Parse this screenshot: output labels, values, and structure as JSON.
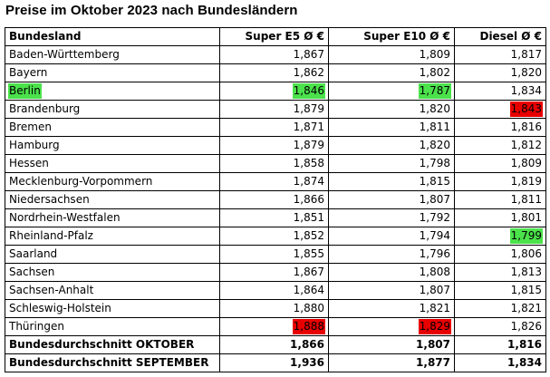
{
  "title": "Preise im Oktober 2023 nach Bundesländern",
  "colors": {
    "green": "#4be24b",
    "red": "#e80000"
  },
  "headers": [
    "Bundesland",
    "Super E5 Ø €",
    "Super E10 Ø €",
    "Diesel Ø €"
  ],
  "rows": [
    {
      "state": "Baden-Württemberg",
      "e5": "1,867",
      "e10": "1,809",
      "diesel": "1,817"
    },
    {
      "state": "Bayern",
      "e5": "1,862",
      "e10": "1,802",
      "diesel": "1,820"
    },
    {
      "state": "Berlin",
      "e5": "1,846",
      "e10": "1,787",
      "diesel": "1,834",
      "hl": {
        "state": "green",
        "e5": "green",
        "e10": "green"
      }
    },
    {
      "state": "Brandenburg",
      "e5": "1,879",
      "e10": "1,820",
      "diesel": "1,843",
      "hl": {
        "diesel": "red"
      }
    },
    {
      "state": "Bremen",
      "e5": "1,871",
      "e10": "1,811",
      "diesel": "1,816"
    },
    {
      "state": "Hamburg",
      "e5": "1,879",
      "e10": "1,820",
      "diesel": "1,812"
    },
    {
      "state": "Hessen",
      "e5": "1,858",
      "e10": "1,798",
      "diesel": "1,809"
    },
    {
      "state": "Mecklenburg-Vorpommern",
      "e5": "1,874",
      "e10": "1,815",
      "diesel": "1,819"
    },
    {
      "state": "Niedersachsen",
      "e5": "1,866",
      "e10": "1,807",
      "diesel": "1,811"
    },
    {
      "state": "Nordrhein-Westfalen",
      "e5": "1,851",
      "e10": "1,792",
      "diesel": "1,801"
    },
    {
      "state": "Rheinland-Pfalz",
      "e5": "1,852",
      "e10": "1,794",
      "diesel": "1,799",
      "hl": {
        "diesel": "green"
      }
    },
    {
      "state": "Saarland",
      "e5": "1,855",
      "e10": "1,796",
      "diesel": "1,806"
    },
    {
      "state": "Sachsen",
      "e5": "1,867",
      "e10": "1,808",
      "diesel": "1,813"
    },
    {
      "state": "Sachsen-Anhalt",
      "e5": "1,864",
      "e10": "1,807",
      "diesel": "1,815"
    },
    {
      "state": "Schleswig-Holstein",
      "e5": "1,880",
      "e10": "1,821",
      "diesel": "1,821"
    },
    {
      "state": "Thüringen",
      "e5": "1,888",
      "e10": "1,829",
      "diesel": "1,826",
      "hl": {
        "e5": "red",
        "e10": "red"
      }
    }
  ],
  "summary": [
    {
      "state": "Bundesdurchschnitt OKTOBER",
      "e5": "1,866",
      "e10": "1,807",
      "diesel": "1,816"
    },
    {
      "state": "Bundesdurchschnitt SEPTEMBER",
      "e5": "1,936",
      "e10": "1,877",
      "diesel": "1,834"
    }
  ]
}
